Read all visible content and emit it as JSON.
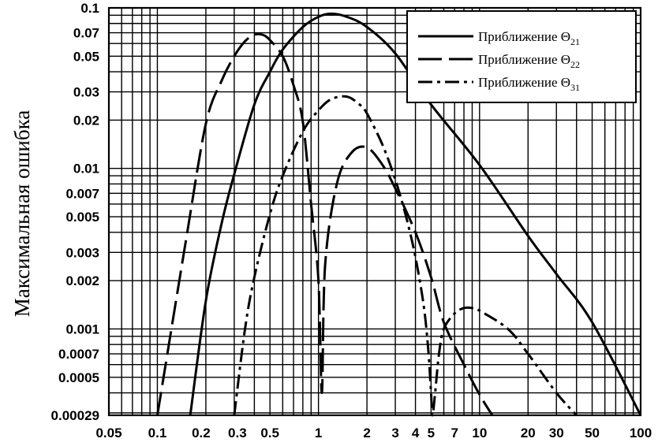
{
  "chart_data": {
    "type": "line",
    "title": "",
    "xlabel": "",
    "ylabel": "Максимальная ошибка",
    "xscale": "log",
    "yscale": "log",
    "xlim": [
      0.05,
      100
    ],
    "ylim": [
      0.00029,
      0.1
    ],
    "grid": true,
    "legend_position": "top-right",
    "x_ticks": [
      "0.05",
      "0.1",
      "0.2",
      "0.3",
      "0.5",
      "1",
      "2",
      "3",
      "4",
      "5",
      "7",
      "10",
      "20",
      "30",
      "50",
      "100"
    ],
    "x_tick_values": [
      0.05,
      0.1,
      0.2,
      0.3,
      0.5,
      1,
      2,
      3,
      4,
      5,
      7,
      10,
      20,
      30,
      50,
      100
    ],
    "y_ticks": [
      "0.1",
      "0.07",
      "0.05",
      "0.03",
      "0.02",
      "0.01",
      "0.007",
      "0.005",
      "0.003",
      "0.002",
      "0.001",
      "0.0007",
      "0.0005",
      "0.00029"
    ],
    "y_tick_values": [
      0.1,
      0.07,
      0.05,
      0.03,
      0.02,
      0.01,
      0.007,
      0.005,
      0.003,
      0.002,
      0.001,
      0.0007,
      0.0005,
      0.00029
    ],
    "series": [
      {
        "name": "Приближение Θ21",
        "label_text": "Приближение Θ",
        "label_sub": "21",
        "style": "solid",
        "x": [
          0.16,
          0.2,
          0.25,
          0.3,
          0.4,
          0.5,
          0.6,
          0.8,
          1.0,
          1.2,
          1.5,
          2.0,
          3.0,
          5.0,
          10,
          20,
          30,
          50,
          100
        ],
        "y": [
          0.00029,
          0.0015,
          0.0045,
          0.0092,
          0.025,
          0.04,
          0.055,
          0.076,
          0.088,
          0.092,
          0.088,
          0.076,
          0.052,
          0.025,
          0.0105,
          0.0038,
          0.0022,
          0.0011,
          0.00029
        ]
      },
      {
        "name": "Приближение Θ22",
        "label_text": "Приближение Θ",
        "label_sub": "22",
        "style": "dashed",
        "x": [
          0.1,
          0.15,
          0.2,
          0.25,
          0.3,
          0.35,
          0.4,
          0.45,
          0.5,
          0.6,
          0.7,
          0.8,
          0.9,
          1.0,
          1.05,
          1.1,
          1.3,
          1.6,
          2.0,
          2.5,
          3.0,
          4.0,
          5.0,
          6.0,
          8.0,
          10.0,
          12.0
        ],
        "y": [
          0.00029,
          0.0035,
          0.019,
          0.035,
          0.05,
          0.062,
          0.068,
          0.068,
          0.063,
          0.05,
          0.033,
          0.0195,
          0.006,
          0.002,
          0.0004,
          0.0025,
          0.008,
          0.0125,
          0.0135,
          0.0105,
          0.0075,
          0.004,
          0.0021,
          0.0011,
          0.0006,
          0.00039,
          0.00029
        ]
      },
      {
        "name": "Приближение Θ31",
        "label_text": "Приближение Θ",
        "label_sub": "31",
        "style": "dash-dot",
        "x": [
          0.3,
          0.35,
          0.4,
          0.5,
          0.6,
          0.8,
          1.0,
          1.2,
          1.5,
          1.8,
          2.0,
          2.5,
          3.0,
          3.5,
          4.0,
          4.5,
          4.8,
          5.0,
          5.1,
          5.3,
          5.6,
          6.0,
          7.0,
          8.0,
          9.0,
          10,
          15,
          20,
          30,
          40
        ],
        "y": [
          0.00029,
          0.001,
          0.0021,
          0.0052,
          0.009,
          0.017,
          0.023,
          0.027,
          0.028,
          0.025,
          0.022,
          0.014,
          0.0085,
          0.005,
          0.0028,
          0.0014,
          0.00075,
          0.0004,
          0.00029,
          0.0004,
          0.0007,
          0.001,
          0.00125,
          0.00135,
          0.00135,
          0.0013,
          0.001,
          0.0007,
          0.0004,
          0.00029
        ]
      }
    ]
  }
}
